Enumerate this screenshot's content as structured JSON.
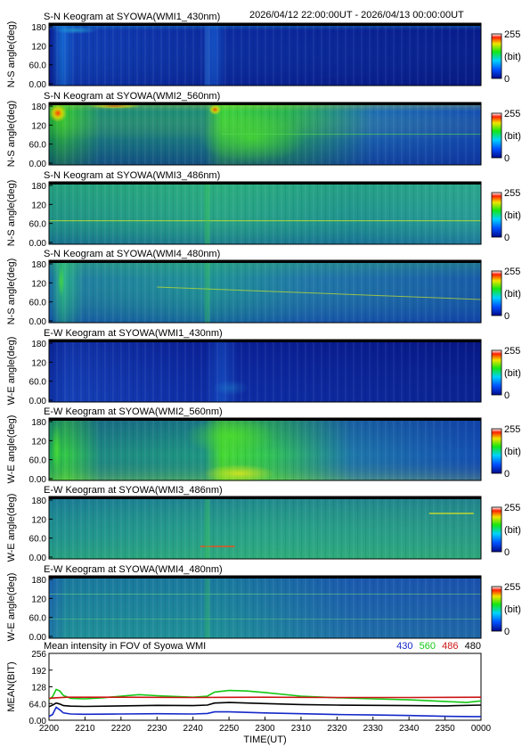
{
  "header": {
    "title": "S-N Keogram at SYOWA(WMI1_430nm)",
    "range": "2026/04/12 22:00:00UT - 2026/04/13 00:00:00UT"
  },
  "keogram_common": {
    "y_ticks": [
      "180",
      "120",
      "60.0",
      "0.00"
    ],
    "colorbar_max": "255",
    "colorbar_unit": "(bit)",
    "colorbar_min": "0"
  },
  "panels": [
    {
      "title": "S-N Keogram at SYOWA(WMI1_430nm)",
      "ylabel": "N-S angle(deg)",
      "style": "p1"
    },
    {
      "title": "S-N Keogram at SYOWA(WMI2_560nm)",
      "ylabel": "N-S angle(deg)",
      "style": "p2"
    },
    {
      "title": "S-N Keogram at SYOWA(WMI3_486nm)",
      "ylabel": "N-S angle(deg)",
      "style": "p3"
    },
    {
      "title": "S-N Keogram at SYOWA(WMI4_480nm)",
      "ylabel": "N-S angle(deg)",
      "style": "p4"
    },
    {
      "title": "E-W Keogram at SYOWA(WMI1_430nm)",
      "ylabel": "W-E angle(deg)",
      "style": "p5"
    },
    {
      "title": "E-W Keogram at SYOWA(WMI2_560nm)",
      "ylabel": "W-E angle(deg)",
      "style": "p6"
    },
    {
      "title": "E-W Keogram at SYOWA(WMI3_486nm)",
      "ylabel": "W-E angle(deg)",
      "style": "p7"
    },
    {
      "title": "E-W Keogram at SYOWA(WMI4_480nm)",
      "ylabel": "W-E angle(deg)",
      "style": "p8"
    }
  ],
  "chart_data": {
    "type": "line",
    "title": "Mean intensity in FOV of Syowa WMI",
    "xlabel": "TIME(UT)",
    "ylabel": "MEAN(BIT)",
    "x_ticks": [
      "2200",
      "2210",
      "2220",
      "2230",
      "2240",
      "2250",
      "2300",
      "2310",
      "2320",
      "2330",
      "2340",
      "2350",
      "0000"
    ],
    "x_tick_minutes": [
      0,
      10,
      20,
      30,
      40,
      50,
      60,
      70,
      80,
      90,
      100,
      110,
      120
    ],
    "xlim": [
      0,
      120
    ],
    "y_ticks": [
      "256",
      "192",
      "128",
      "64.0",
      "0.00"
    ],
    "y_tick_values": [
      256,
      192,
      128,
      64,
      0
    ],
    "ylim": [
      0,
      256
    ],
    "legend_position": "top-right",
    "series": [
      {
        "name": "430",
        "color": "#1428c8",
        "points": [
          [
            0,
            15
          ],
          [
            1,
            22
          ],
          [
            2,
            50
          ],
          [
            3,
            40
          ],
          [
            4,
            28
          ],
          [
            6,
            24
          ],
          [
            10,
            23
          ],
          [
            20,
            24
          ],
          [
            30,
            25
          ],
          [
            40,
            24
          ],
          [
            44,
            26
          ],
          [
            46,
            32
          ],
          [
            50,
            32
          ],
          [
            55,
            30
          ],
          [
            60,
            28
          ],
          [
            70,
            25
          ],
          [
            80,
            22
          ],
          [
            90,
            20
          ],
          [
            100,
            18
          ],
          [
            110,
            15
          ],
          [
            118,
            14
          ],
          [
            120,
            14
          ]
        ]
      },
      {
        "name": "560",
        "color": "#14c814",
        "points": [
          [
            0,
            80
          ],
          [
            1,
            90
          ],
          [
            2,
            118
          ],
          [
            3,
            112
          ],
          [
            4,
            95
          ],
          [
            6,
            84
          ],
          [
            10,
            82
          ],
          [
            15,
            86
          ],
          [
            20,
            92
          ],
          [
            25,
            98
          ],
          [
            30,
            94
          ],
          [
            40,
            88
          ],
          [
            44,
            92
          ],
          [
            46,
            108
          ],
          [
            50,
            114
          ],
          [
            55,
            112
          ],
          [
            60,
            106
          ],
          [
            70,
            92
          ],
          [
            80,
            86
          ],
          [
            90,
            82
          ],
          [
            100,
            78
          ],
          [
            110,
            72
          ],
          [
            116,
            68
          ],
          [
            120,
            74
          ]
        ]
      },
      {
        "name": "486",
        "color": "#cc1414",
        "points": [
          [
            0,
            84
          ],
          [
            2,
            86
          ],
          [
            5,
            88
          ],
          [
            20,
            88
          ],
          [
            40,
            87
          ],
          [
            60,
            88
          ],
          [
            80,
            87
          ],
          [
            100,
            87
          ],
          [
            120,
            88
          ]
        ]
      },
      {
        "name": "480",
        "color": "#000000",
        "points": [
          [
            0,
            52
          ],
          [
            1,
            58
          ],
          [
            2,
            66
          ],
          [
            3,
            62
          ],
          [
            4,
            56
          ],
          [
            6,
            54
          ],
          [
            10,
            53
          ],
          [
            20,
            55
          ],
          [
            30,
            57
          ],
          [
            40,
            56
          ],
          [
            44,
            58
          ],
          [
            46,
            66
          ],
          [
            50,
            68
          ],
          [
            55,
            66
          ],
          [
            60,
            64
          ],
          [
            70,
            60
          ],
          [
            80,
            58
          ],
          [
            90,
            57
          ],
          [
            100,
            56
          ],
          [
            110,
            55
          ],
          [
            120,
            58
          ]
        ]
      }
    ]
  }
}
